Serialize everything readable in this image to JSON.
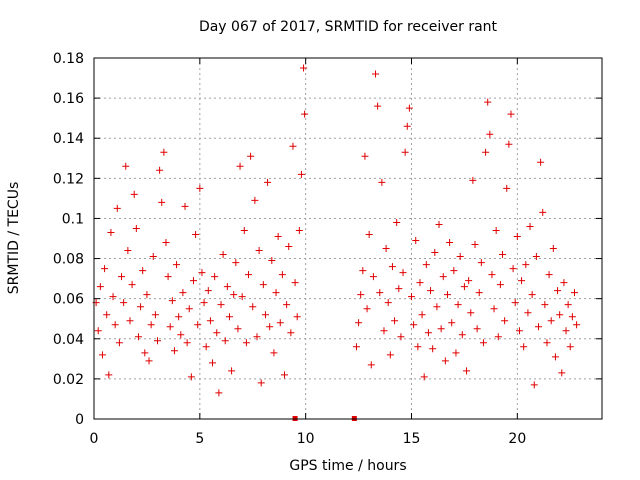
{
  "chart_data": {
    "type": "scatter",
    "title": "Day 067 of 2017, SRMTID for receiver rant",
    "xlabel": "GPS time / hours",
    "ylabel": "SRMTID / TECUs",
    "xlim": [
      0,
      24
    ],
    "ylim": [
      0,
      0.18
    ],
    "xticks": [
      0,
      5,
      10,
      15,
      20
    ],
    "xtick_labels": [
      "0",
      "5",
      "10",
      "15",
      "20"
    ],
    "yticks": [
      0,
      0.02,
      0.04,
      0.06,
      0.08,
      0.1,
      0.12,
      0.14,
      0.16,
      0.18
    ],
    "ytick_labels": [
      "0",
      "0.02",
      "0.04",
      "0.06",
      "0.08",
      "0.1",
      "0.12",
      "0.14",
      "0.16",
      "0.18"
    ],
    "grid": true,
    "marker": "plus",
    "color": "#e00000",
    "data_gap_hours": [
      10.0,
      12.3
    ],
    "zero_markers_x": [
      9.5,
      12.3
    ],
    "series": [
      {
        "name": "SRMTID",
        "points": [
          [
            0.1,
            0.058
          ],
          [
            0.2,
            0.044
          ],
          [
            0.3,
            0.066
          ],
          [
            0.4,
            0.032
          ],
          [
            0.5,
            0.075
          ],
          [
            0.6,
            0.052
          ],
          [
            0.7,
            0.022
          ],
          [
            0.8,
            0.093
          ],
          [
            0.9,
            0.061
          ],
          [
            1.0,
            0.047
          ],
          [
            1.1,
            0.105
          ],
          [
            1.2,
            0.038
          ],
          [
            1.3,
            0.071
          ],
          [
            1.4,
            0.058
          ],
          [
            1.5,
            0.126
          ],
          [
            1.6,
            0.084
          ],
          [
            1.7,
            0.049
          ],
          [
            1.8,
            0.067
          ],
          [
            1.9,
            0.112
          ],
          [
            2.0,
            0.095
          ],
          [
            2.1,
            0.041
          ],
          [
            2.2,
            0.056
          ],
          [
            2.3,
            0.074
          ],
          [
            2.4,
            0.033
          ],
          [
            2.5,
            0.062
          ],
          [
            2.6,
            0.029
          ],
          [
            2.7,
            0.047
          ],
          [
            2.8,
            0.081
          ],
          [
            2.9,
            0.052
          ],
          [
            3.0,
            0.039
          ],
          [
            3.1,
            0.124
          ],
          [
            3.2,
            0.108
          ],
          [
            3.3,
            0.133
          ],
          [
            3.4,
            0.088
          ],
          [
            3.5,
            0.071
          ],
          [
            3.6,
            0.046
          ],
          [
            3.7,
            0.059
          ],
          [
            3.8,
            0.034
          ],
          [
            3.9,
            0.077
          ],
          [
            4.0,
            0.051
          ],
          [
            4.1,
            0.042
          ],
          [
            4.2,
            0.063
          ],
          [
            4.3,
            0.106
          ],
          [
            4.4,
            0.038
          ],
          [
            4.5,
            0.055
          ],
          [
            4.6,
            0.021
          ],
          [
            4.7,
            0.069
          ],
          [
            4.8,
            0.092
          ],
          [
            4.9,
            0.047
          ],
          [
            5.0,
            0.115
          ],
          [
            5.1,
            0.073
          ],
          [
            5.2,
            0.058
          ],
          [
            5.3,
            0.036
          ],
          [
            5.4,
            0.064
          ],
          [
            5.5,
            0.049
          ],
          [
            5.6,
            0.028
          ],
          [
            5.7,
            0.071
          ],
          [
            5.8,
            0.043
          ],
          [
            5.9,
            0.013
          ],
          [
            6.0,
            0.057
          ],
          [
            6.1,
            0.082
          ],
          [
            6.2,
            0.039
          ],
          [
            6.3,
            0.066
          ],
          [
            6.4,
            0.051
          ],
          [
            6.5,
            0.024
          ],
          [
            6.6,
            0.062
          ],
          [
            6.7,
            0.078
          ],
          [
            6.8,
            0.045
          ],
          [
            6.9,
            0.126
          ],
          [
            7.0,
            0.061
          ],
          [
            7.1,
            0.094
          ],
          [
            7.2,
            0.038
          ],
          [
            7.3,
            0.072
          ],
          [
            7.4,
            0.131
          ],
          [
            7.5,
            0.056
          ],
          [
            7.6,
            0.109
          ],
          [
            7.7,
            0.041
          ],
          [
            7.8,
            0.084
          ],
          [
            7.9,
            0.018
          ],
          [
            8.0,
            0.067
          ],
          [
            8.1,
            0.052
          ],
          [
            8.2,
            0.118
          ],
          [
            8.3,
            0.046
          ],
          [
            8.4,
            0.079
          ],
          [
            8.5,
            0.033
          ],
          [
            8.6,
            0.063
          ],
          [
            8.7,
            0.091
          ],
          [
            8.8,
            0.048
          ],
          [
            8.9,
            0.072
          ],
          [
            9.0,
            0.022
          ],
          [
            9.1,
            0.057
          ],
          [
            9.2,
            0.086
          ],
          [
            9.3,
            0.043
          ],
          [
            9.4,
            0.136
          ],
          [
            9.5,
            0.068
          ],
          [
            9.6,
            0.051
          ],
          [
            9.7,
            0.094
          ],
          [
            9.8,
            0.122
          ],
          [
            9.9,
            0.175
          ],
          [
            9.95,
            0.152
          ],
          [
            12.4,
            0.036
          ],
          [
            12.5,
            0.048
          ],
          [
            12.6,
            0.062
          ],
          [
            12.7,
            0.074
          ],
          [
            12.8,
            0.131
          ],
          [
            12.9,
            0.055
          ],
          [
            13.0,
            0.092
          ],
          [
            13.1,
            0.027
          ],
          [
            13.2,
            0.071
          ],
          [
            13.3,
            0.172
          ],
          [
            13.4,
            0.156
          ],
          [
            13.5,
            0.063
          ],
          [
            13.6,
            0.118
          ],
          [
            13.7,
            0.044
          ],
          [
            13.8,
            0.085
          ],
          [
            13.9,
            0.058
          ],
          [
            14.0,
            0.032
          ],
          [
            14.1,
            0.076
          ],
          [
            14.2,
            0.049
          ],
          [
            14.3,
            0.098
          ],
          [
            14.4,
            0.065
          ],
          [
            14.5,
            0.041
          ],
          [
            14.6,
            0.073
          ],
          [
            14.7,
            0.133
          ],
          [
            14.8,
            0.146
          ],
          [
            14.9,
            0.155
          ],
          [
            15.0,
            0.061
          ],
          [
            15.1,
            0.047
          ],
          [
            15.2,
            0.089
          ],
          [
            15.3,
            0.036
          ],
          [
            15.4,
            0.068
          ],
          [
            15.5,
            0.052
          ],
          [
            15.6,
            0.021
          ],
          [
            15.7,
            0.077
          ],
          [
            15.8,
            0.043
          ],
          [
            15.9,
            0.064
          ],
          [
            16.0,
            0.035
          ],
          [
            16.1,
            0.083
          ],
          [
            16.2,
            0.056
          ],
          [
            16.3,
            0.097
          ],
          [
            16.4,
            0.045
          ],
          [
            16.5,
            0.071
          ],
          [
            16.6,
            0.029
          ],
          [
            16.7,
            0.062
          ],
          [
            16.8,
            0.088
          ],
          [
            16.9,
            0.048
          ],
          [
            17.0,
            0.074
          ],
          [
            17.1,
            0.033
          ],
          [
            17.2,
            0.057
          ],
          [
            17.3,
            0.081
          ],
          [
            17.4,
            0.042
          ],
          [
            17.5,
            0.066
          ],
          [
            17.6,
            0.024
          ],
          [
            17.7,
            0.069
          ],
          [
            17.8,
            0.053
          ],
          [
            17.9,
            0.119
          ],
          [
            18.0,
            0.087
          ],
          [
            18.1,
            0.045
          ],
          [
            18.2,
            0.063
          ],
          [
            18.3,
            0.078
          ],
          [
            18.4,
            0.038
          ],
          [
            18.5,
            0.133
          ],
          [
            18.6,
            0.158
          ],
          [
            18.7,
            0.142
          ],
          [
            18.8,
            0.072
          ],
          [
            18.9,
            0.055
          ],
          [
            19.0,
            0.094
          ],
          [
            19.1,
            0.041
          ],
          [
            19.2,
            0.067
          ],
          [
            19.3,
            0.082
          ],
          [
            19.4,
            0.049
          ],
          [
            19.5,
            0.115
          ],
          [
            19.6,
            0.137
          ],
          [
            19.7,
            0.152
          ],
          [
            19.8,
            0.075
          ],
          [
            19.9,
            0.058
          ],
          [
            20.0,
            0.091
          ],
          [
            20.1,
            0.044
          ],
          [
            20.2,
            0.069
          ],
          [
            20.3,
            0.036
          ],
          [
            20.4,
            0.077
          ],
          [
            20.5,
            0.053
          ],
          [
            20.6,
            0.096
          ],
          [
            20.7,
            0.062
          ],
          [
            20.8,
            0.017
          ],
          [
            20.9,
            0.081
          ],
          [
            21.0,
            0.046
          ],
          [
            21.1,
            0.128
          ],
          [
            21.2,
            0.103
          ],
          [
            21.3,
            0.057
          ],
          [
            21.4,
            0.038
          ],
          [
            21.5,
            0.072
          ],
          [
            21.6,
            0.049
          ],
          [
            21.7,
            0.085
          ],
          [
            21.8,
            0.031
          ],
          [
            21.9,
            0.064
          ],
          [
            22.0,
            0.052
          ],
          [
            22.1,
            0.023
          ],
          [
            22.2,
            0.068
          ],
          [
            22.3,
            0.044
          ],
          [
            22.4,
            0.057
          ],
          [
            22.5,
            0.036
          ],
          [
            22.6,
            0.051
          ],
          [
            22.7,
            0.063
          ],
          [
            22.8,
            0.047
          ]
        ]
      }
    ]
  }
}
